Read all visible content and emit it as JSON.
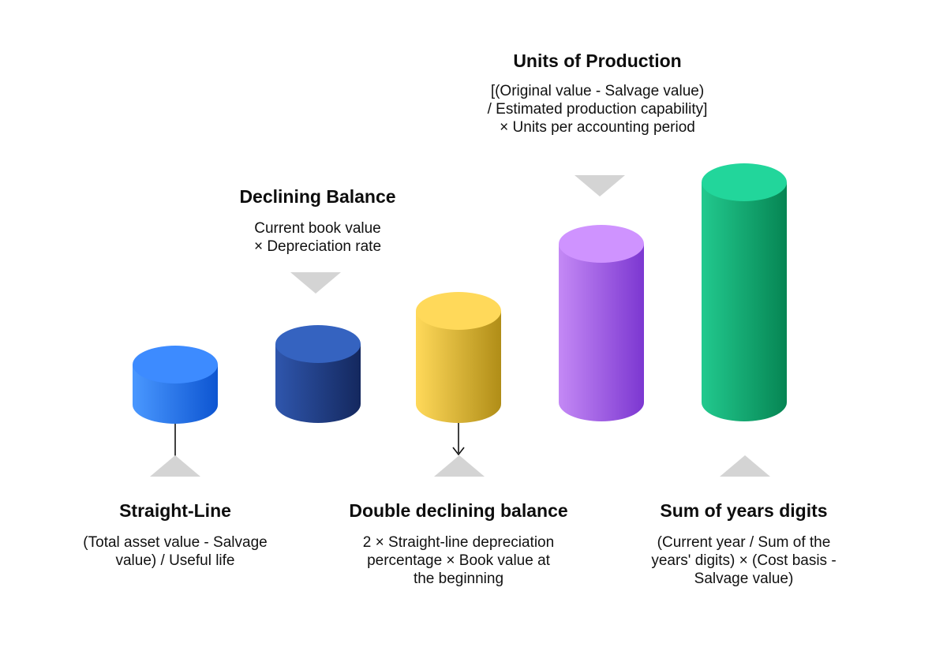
{
  "methods": [
    {
      "title": "Straight-Line",
      "formula": "(Total asset value - Salvage value) / Useful life",
      "color_light": "#4a98ff",
      "color_dark": "#0d55d1",
      "color_top": "#3d8bff"
    },
    {
      "title": "Declining Balance",
      "formula": "Current book value × Depreciation rate",
      "color_light": "#2f56ad",
      "color_dark": "#14285e",
      "color_top": "#3563c0"
    },
    {
      "title": "Double declining balance",
      "formula": "2 × Straight-line depreciation percentage × Book value at the beginning",
      "color_light": "#ffd95a",
      "color_dark": "#b08d17",
      "color_top": "#ffd95a"
    },
    {
      "title": "Units of Production",
      "formula": "[(Original value - Salvage value) / Estimated production capability] × Units per accounting period",
      "color_light": "#c489f5",
      "color_dark": "#7c37d1",
      "color_top": "#cf93ff"
    },
    {
      "title": "Sum of years digits",
      "formula": "(Current year / Sum of the years' digits) × (Cost basis - Salvage value)",
      "color_light": "#22c98e",
      "color_dark": "#068553",
      "color_top": "#22d69b"
    }
  ],
  "pointer_color": "#d4d4d4"
}
